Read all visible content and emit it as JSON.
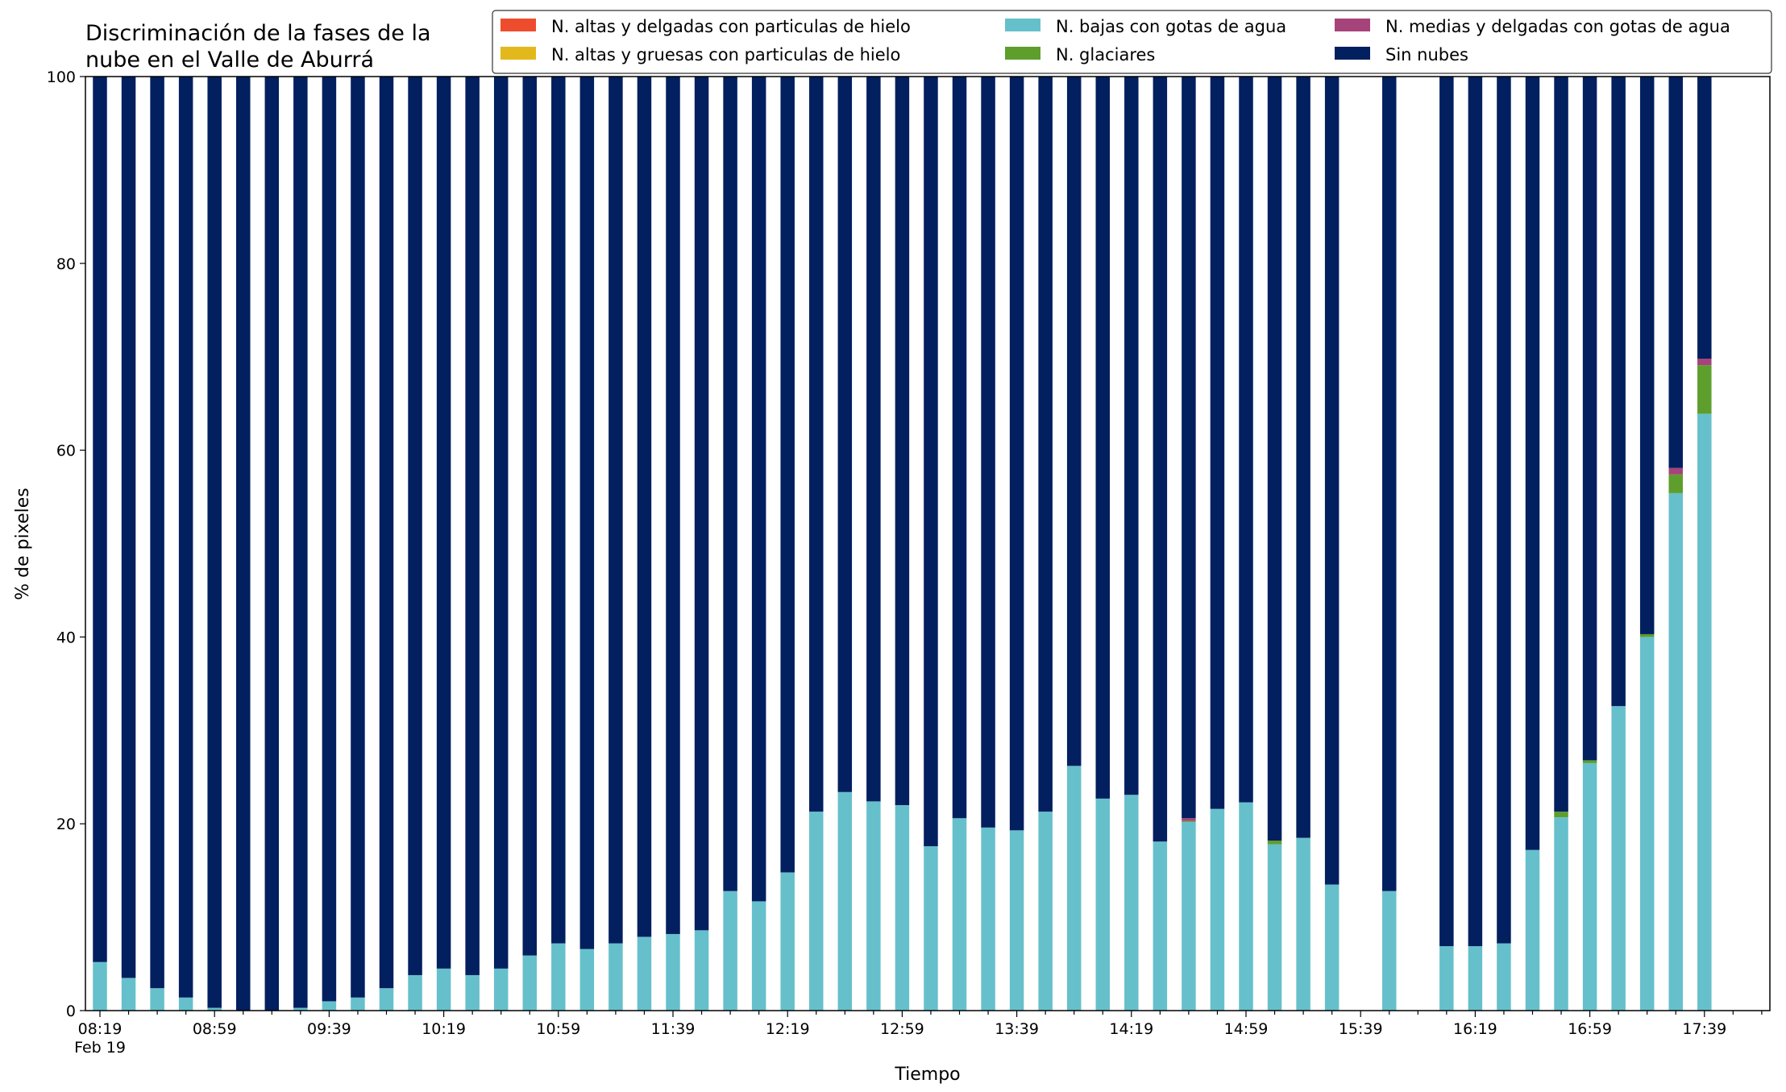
{
  "chart_data": {
    "type": "bar",
    "stacked": true,
    "title": [
      "Discriminación de la fases de la",
      "nube en el Valle de Aburrá"
    ],
    "xlabel": "Tiempo",
    "ylabel": "% de pixeles",
    "ylim": [
      0,
      100
    ],
    "yticks": [
      0,
      20,
      40,
      60,
      80,
      100
    ],
    "xtick_labels": [
      "08:19",
      "08:59",
      "09:39",
      "10:19",
      "10:59",
      "11:39",
      "12:19",
      "12:59",
      "13:39",
      "14:19",
      "14:59",
      "15:39",
      "16:19",
      "16:59",
      "17:39"
    ],
    "xtick_date_label": "Feb 19",
    "grid": false,
    "legend_position": "top-right",
    "categories": [
      "08:19",
      "08:29",
      "08:39",
      "08:49",
      "08:59",
      "09:09",
      "09:19",
      "09:29",
      "09:39",
      "09:49",
      "09:59",
      "10:09",
      "10:19",
      "10:29",
      "10:39",
      "10:49",
      "10:59",
      "11:09",
      "11:19",
      "11:29",
      "11:39",
      "11:49",
      "11:59",
      "12:09",
      "12:19",
      "12:29",
      "12:39",
      "12:49",
      "12:59",
      "13:09",
      "13:19",
      "13:29",
      "13:39",
      "13:49",
      "13:59",
      "14:09",
      "14:19",
      "14:29",
      "14:39",
      "14:49",
      "14:59",
      "15:09",
      "15:19",
      "15:29",
      "15:39",
      "15:49",
      "15:59",
      "16:09",
      "16:19",
      "16:29",
      "16:39",
      "16:49",
      "16:59",
      "17:09",
      "17:19",
      "17:29",
      "17:39",
      "17:49"
    ],
    "series": [
      {
        "name": "N. altas y delgadas con particulas de hielo",
        "color": "#EE4D2D",
        "values": [
          0,
          0,
          0,
          0,
          0,
          0,
          0,
          0,
          0,
          0,
          0,
          0,
          0,
          0,
          0,
          0,
          0,
          0,
          0,
          0,
          0,
          0,
          0,
          0,
          0,
          0,
          0,
          0,
          0,
          0,
          0,
          0,
          0,
          0,
          0,
          0,
          0,
          0,
          0,
          0,
          0,
          0,
          0,
          0,
          0,
          null,
          0,
          null,
          0,
          0,
          0,
          0,
          0,
          0,
          0,
          0,
          0,
          0
        ]
      },
      {
        "name": "N. altas y gruesas con particulas de hielo",
        "color": "#E3B81C",
        "values": [
          0,
          0,
          0,
          0,
          0,
          0,
          0,
          0,
          0,
          0,
          0,
          0,
          0,
          0,
          0,
          0,
          0,
          0,
          0,
          0,
          0,
          0,
          0,
          0,
          0,
          0,
          0,
          0,
          0,
          0,
          0,
          0,
          0,
          0,
          0,
          0,
          0,
          0,
          0,
          0,
          0,
          0,
          0,
          0,
          0,
          null,
          0,
          null,
          0,
          0,
          0,
          0,
          0,
          0,
          0,
          0,
          0,
          0
        ]
      },
      {
        "name": "N. bajas con gotas de agua",
        "color": "#66C0CB",
        "values": [
          5.2,
          3.5,
          2.4,
          1.4,
          0.3,
          0,
          0,
          0.3,
          1.0,
          1.4,
          2.4,
          3.8,
          4.5,
          3.8,
          4.5,
          5.9,
          7.2,
          6.6,
          7.2,
          7.9,
          8.2,
          8.6,
          12.8,
          11.7,
          14.8,
          21.3,
          23.4,
          22.4,
          22.0,
          17.6,
          20.6,
          19.6,
          19.3,
          21.3,
          26.2,
          22.7,
          23.1,
          18.1,
          20.2,
          21.6,
          22.3,
          17.8,
          18.5,
          13.5,
          null,
          12.8,
          null,
          6.9,
          6.9,
          7.2,
          17.2,
          20.7,
          26.5,
          32.6,
          40.0,
          55.4,
          63.9,
          0
        ]
      },
      {
        "name": "N. glaciares",
        "color": "#5E9E2D",
        "values": [
          0,
          0,
          0,
          0,
          0,
          0,
          0,
          0,
          0,
          0,
          0,
          0,
          0,
          0,
          0,
          0,
          0,
          0,
          0,
          0,
          0,
          0,
          0,
          0,
          0,
          0,
          0,
          0,
          0,
          0,
          0,
          0,
          0,
          0,
          0,
          0,
          0,
          0,
          0.1,
          0,
          0,
          0.4,
          0,
          0,
          null,
          0,
          null,
          0,
          0,
          0,
          0,
          0.6,
          0.3,
          0,
          0.3,
          2.0,
          5.2,
          0
        ]
      },
      {
        "name": "N. medias y delgadas con gotas de agua",
        "color": "#A6437A",
        "values": [
          0,
          0,
          0,
          0,
          0,
          0,
          0,
          0,
          0,
          0,
          0,
          0,
          0,
          0,
          0,
          0,
          0,
          0,
          0,
          0,
          0,
          0,
          0,
          0,
          0,
          0,
          0,
          0,
          0,
          0,
          0,
          0,
          0,
          0,
          0,
          0,
          0,
          0,
          0.3,
          0,
          0,
          0,
          0,
          0,
          null,
          0,
          null,
          0,
          0,
          0,
          0,
          0,
          0,
          0,
          0,
          0.7,
          0.7,
          0
        ]
      },
      {
        "name": "Sin nubes",
        "color": "#021F5F",
        "values": [
          94.8,
          96.5,
          97.6,
          98.6,
          99.7,
          100,
          100,
          99.7,
          99.0,
          98.6,
          97.6,
          96.2,
          95.5,
          96.2,
          95.5,
          94.1,
          92.8,
          93.4,
          92.8,
          92.1,
          91.8,
          91.4,
          87.2,
          88.3,
          85.2,
          78.7,
          76.6,
          77.6,
          78.0,
          82.4,
          79.4,
          80.4,
          80.7,
          78.7,
          73.8,
          77.3,
          76.9,
          81.9,
          79.4,
          78.4,
          77.7,
          81.8,
          81.5,
          86.5,
          null,
          87.2,
          null,
          93.1,
          93.1,
          92.8,
          82.8,
          78.7,
          73.2,
          67.4,
          59.7,
          41.9,
          30.2,
          0
        ]
      }
    ]
  }
}
